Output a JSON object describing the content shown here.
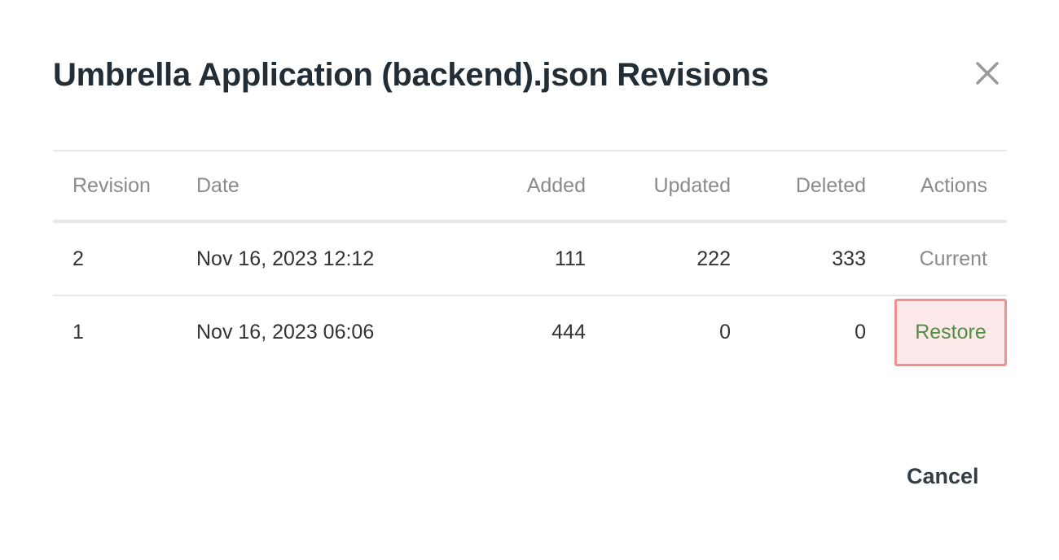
{
  "dialog": {
    "title": "Umbrella Application (backend).json Revisions",
    "close_icon": "close-icon",
    "cancel_label": "Cancel"
  },
  "table": {
    "headers": [
      "Revision",
      "Date",
      "Added",
      "Updated",
      "Deleted",
      "Actions"
    ],
    "rows": [
      {
        "revision": "2",
        "date": "Nov 16, 2023 12:12",
        "added": "111",
        "updated": "222",
        "deleted": "333",
        "action": "Current"
      },
      {
        "revision": "1",
        "date": "Nov 16, 2023 06:06",
        "added": "444",
        "updated": "0",
        "deleted": "0",
        "action": "Restore"
      }
    ]
  },
  "colors": {
    "restore_text": "#4f8f3f",
    "restore_bg": "#fde9e9",
    "restore_border": "#f09090"
  }
}
